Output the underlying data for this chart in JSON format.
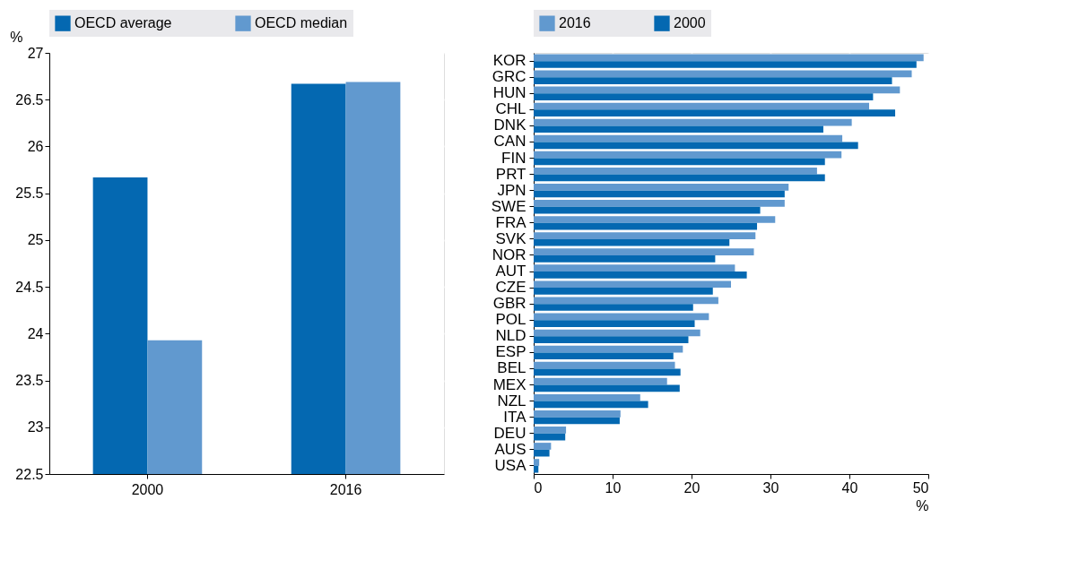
{
  "chart_data": [
    {
      "type": "bar",
      "ylabel": "%",
      "categories": [
        "2000",
        "2016"
      ],
      "ylim": [
        22.5,
        27
      ],
      "yticks": [
        22.5,
        23,
        23.5,
        24,
        24.5,
        25,
        25.5,
        26,
        26.5,
        27
      ],
      "grid": "y",
      "legend": "top",
      "series": [
        {
          "name": "OECD average",
          "color": "#0468b1",
          "values": [
            25.67,
            26.67
          ]
        },
        {
          "name": "OECD median",
          "color": "#6199cf",
          "values": [
            23.93,
            26.69
          ]
        }
      ]
    },
    {
      "type": "bar",
      "orientation": "horizontal",
      "xlabel": "%",
      "categories": [
        "KOR",
        "GRC",
        "HUN",
        "CHL",
        "DNK",
        "CAN",
        "FIN",
        "PRT",
        "JPN",
        "SWE",
        "FRA",
        "SVK",
        "NOR",
        "AUT",
        "CZE",
        "GBR",
        "POL",
        "NLD",
        "ESP",
        "BEL",
        "MEX",
        "NZL",
        "ITA",
        "DEU",
        "AUS",
        "USA"
      ],
      "xlim": [
        0,
        50
      ],
      "xticks": [
        0,
        10,
        20,
        30,
        40,
        50
      ],
      "grid": "x",
      "legend": "top",
      "series": [
        {
          "name": "2016",
          "color": "#6199cf",
          "values": [
            49.4,
            47.9,
            46.4,
            42.5,
            40.3,
            39.1,
            39.0,
            35.9,
            32.3,
            31.8,
            30.6,
            28.1,
            27.9,
            25.5,
            25.0,
            23.4,
            22.2,
            21.1,
            18.9,
            17.9,
            16.9,
            13.5,
            11.0,
            4.1,
            2.2,
            0.7
          ]
        },
        {
          "name": "2000",
          "color": "#0468b1",
          "values": [
            48.5,
            45.4,
            43.0,
            45.8,
            36.7,
            41.1,
            36.9,
            36.9,
            31.8,
            28.7,
            28.3,
            24.8,
            23.0,
            27.0,
            22.7,
            20.2,
            20.4,
            19.6,
            17.7,
            18.6,
            18.5,
            14.5,
            10.9,
            4.0,
            2.0,
            0.6
          ]
        }
      ]
    }
  ]
}
